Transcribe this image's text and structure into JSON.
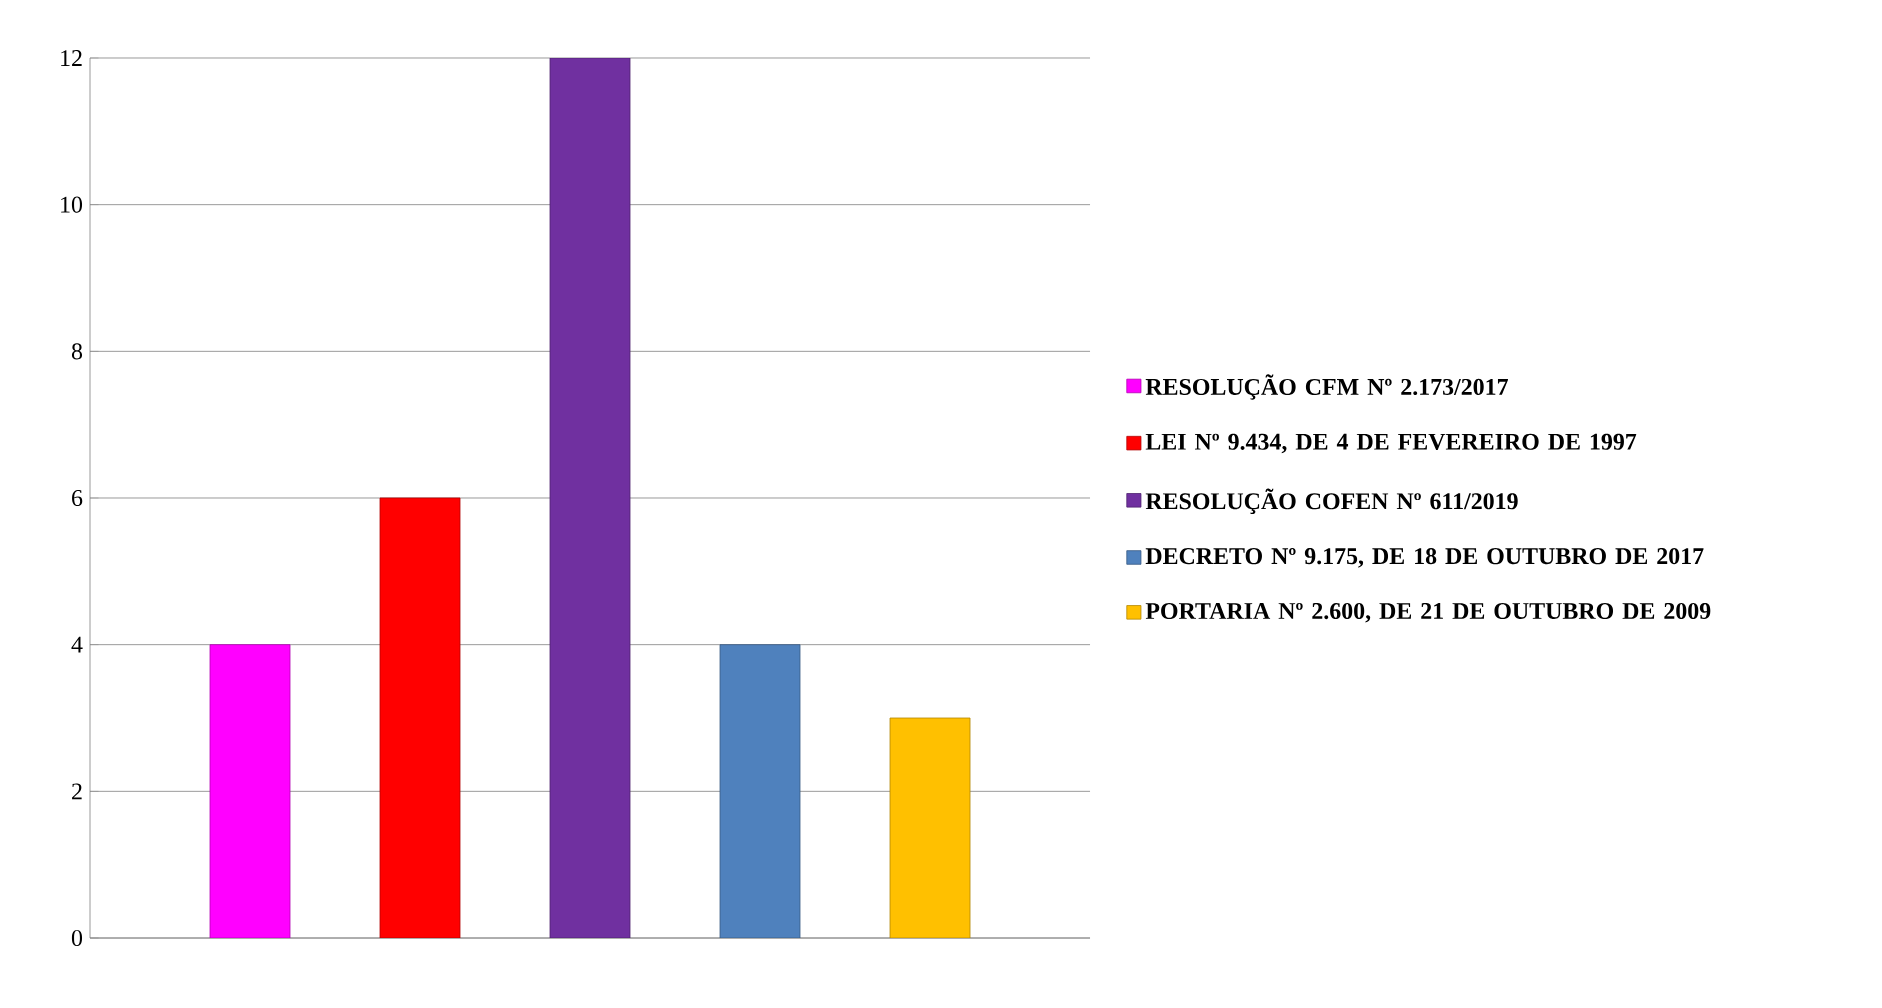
{
  "chart_data": {
    "type": "bar",
    "categories": [
      null
    ],
    "series": [
      {
        "name": "RESOLUÇÃO CFM Nº 2.173/2017",
        "color": "#ff00ff",
        "values": [
          4
        ]
      },
      {
        "name": "LEI Nº 9.434, DE 4 DE FEVEREIRO DE 1997",
        "color": "#ff0000",
        "values": [
          6
        ]
      },
      {
        "name": "RESOLUÇÃO COFEN Nº 611/2019",
        "color": "#7030a0",
        "values": [
          12
        ]
      },
      {
        "name": "DECRETO Nº 9.175, DE 18 DE OUTUBRO DE 2017",
        "color": "#4f81bd",
        "values": [
          4
        ]
      },
      {
        "name": "PORTARIA Nº 2.600, DE 21 DE OUTUBRO DE 2009",
        "color": "#ffc000",
        "values": [
          3
        ]
      }
    ],
    "ylim": [
      0,
      12
    ],
    "yticks": [
      0,
      2,
      4,
      6,
      8,
      10,
      12
    ],
    "grid": "y",
    "legend": "right"
  }
}
